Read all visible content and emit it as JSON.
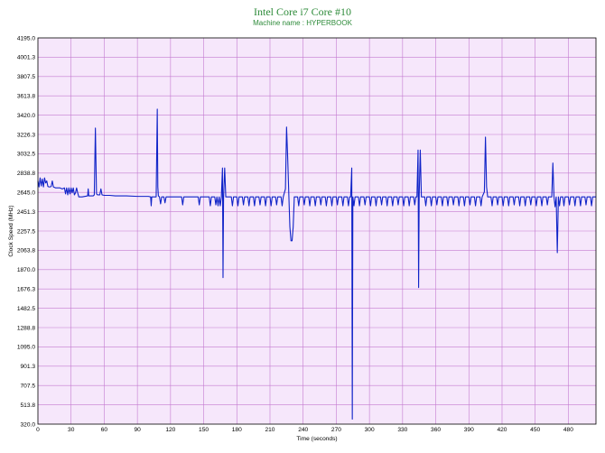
{
  "chart_data": {
    "type": "line",
    "title": "Intel Core i7 Core #10",
    "subtitle": "Machine name : HYPERBOOK",
    "xlabel": "Time (seconds)",
    "ylabel": "Clock Speed (MHz)",
    "xlim": [
      0,
      505
    ],
    "ylim": [
      320.0,
      4195.0
    ],
    "x_ticks": [
      "0",
      "30",
      "60",
      "90",
      "120",
      "150",
      "180",
      "210",
      "240",
      "270",
      "300",
      "330",
      "360",
      "390",
      "420",
      "450",
      "480"
    ],
    "y_ticks": [
      "4195.0",
      "4001.3",
      "3807.5",
      "3613.8",
      "3420.0",
      "3226.3",
      "3032.5",
      "2838.8",
      "2645.0",
      "2451.3",
      "2257.5",
      "2063.8",
      "1870.0",
      "1676.3",
      "1482.5",
      "1288.8",
      "1095.0",
      "901.3",
      "707.5",
      "513.8",
      "320.0"
    ],
    "grid": true,
    "colors": {
      "plot_background": "#f6e7fb",
      "grid": "#c47bd0",
      "series": "#0f23c8",
      "title": "#2e8b3a"
    },
    "series": [
      {
        "baseline": 2600,
        "points": [
          [
            0,
            2760
          ],
          [
            1,
            2700
          ],
          [
            2,
            2790
          ],
          [
            3,
            2710
          ],
          [
            4,
            2780
          ],
          [
            5,
            2700
          ],
          [
            6,
            2790
          ],
          [
            7,
            2740
          ],
          [
            8,
            2760
          ],
          [
            9,
            2705
          ],
          [
            10,
            2700
          ],
          [
            11,
            2700
          ],
          [
            12,
            2705
          ],
          [
            13,
            2760
          ],
          [
            14,
            2700
          ],
          [
            16,
            2690
          ],
          [
            18,
            2690
          ],
          [
            20,
            2690
          ],
          [
            22,
            2680
          ],
          [
            24,
            2690
          ],
          [
            25,
            2630
          ],
          [
            26,
            2690
          ],
          [
            27,
            2620
          ],
          [
            28,
            2690
          ],
          [
            29,
            2630
          ],
          [
            30,
            2690
          ],
          [
            31,
            2640
          ],
          [
            32,
            2690
          ],
          [
            33,
            2620
          ],
          [
            34,
            2640
          ],
          [
            35,
            2690
          ],
          [
            36,
            2640
          ],
          [
            37,
            2600
          ],
          [
            38,
            2600
          ],
          [
            40,
            2600
          ],
          [
            45,
            2610
          ],
          [
            45.5,
            2680
          ],
          [
            46,
            2610
          ],
          [
            50,
            2610
          ],
          [
            51,
            2620
          ],
          [
            52,
            3290
          ],
          [
            53,
            2630
          ],
          [
            54,
            2620
          ],
          [
            56,
            2620
          ],
          [
            57,
            2680
          ],
          [
            58,
            2620
          ],
          [
            60,
            2615
          ],
          [
            65,
            2615
          ],
          [
            70,
            2610
          ],
          [
            80,
            2610
          ],
          [
            90,
            2605
          ],
          [
            100,
            2605
          ],
          [
            102,
            2600
          ],
          [
            102.5,
            2510
          ],
          [
            103,
            2600
          ],
          [
            107,
            2600
          ],
          [
            108,
            3480
          ],
          [
            108.5,
            2700
          ],
          [
            109,
            2610
          ],
          [
            110,
            2600
          ],
          [
            111,
            2530
          ],
          [
            112,
            2600
          ],
          [
            114,
            2600
          ],
          [
            115,
            2540
          ],
          [
            116,
            2600
          ],
          [
            120,
            2600
          ],
          [
            125,
            2600
          ],
          [
            130,
            2600
          ],
          [
            131,
            2520
          ],
          [
            132,
            2600
          ],
          [
            140,
            2600
          ],
          [
            145,
            2600
          ],
          [
            146,
            2520
          ],
          [
            147,
            2600
          ],
          [
            150,
            2600
          ],
          [
            155,
            2600
          ],
          [
            156,
            2510
          ],
          [
            157,
            2600
          ],
          [
            160,
            2600
          ],
          [
            161,
            2520
          ],
          [
            162,
            2600
          ],
          [
            163,
            2510
          ],
          [
            164,
            2600
          ],
          [
            165,
            2510
          ],
          [
            166,
            2600
          ],
          [
            167,
            2890
          ],
          [
            167.5,
            1790
          ],
          [
            168,
            2600
          ],
          [
            169,
            2890
          ],
          [
            170,
            2600
          ],
          [
            175,
            2600
          ],
          [
            176,
            2510
          ],
          [
            177,
            2600
          ],
          [
            180,
            2600
          ],
          [
            181,
            2510
          ],
          [
            182,
            2600
          ],
          [
            185,
            2600
          ],
          [
            186,
            2520
          ],
          [
            187,
            2600
          ],
          [
            190,
            2600
          ],
          [
            191,
            2510
          ],
          [
            192,
            2600
          ],
          [
            195,
            2600
          ],
          [
            196,
            2510
          ],
          [
            197,
            2600
          ],
          [
            200,
            2600
          ],
          [
            201,
            2520
          ],
          [
            202,
            2600
          ],
          [
            205,
            2600
          ],
          [
            206,
            2510
          ],
          [
            207,
            2600
          ],
          [
            210,
            2600
          ],
          [
            211,
            2510
          ],
          [
            212,
            2600
          ],
          [
            215,
            2600
          ],
          [
            216,
            2520
          ],
          [
            217,
            2600
          ],
          [
            220,
            2600
          ],
          [
            221,
            2510
          ],
          [
            222,
            2600
          ],
          [
            224,
            2680
          ],
          [
            225,
            3300
          ],
          [
            226,
            3000
          ],
          [
            227,
            2640
          ],
          [
            228,
            2300
          ],
          [
            229,
            2160
          ],
          [
            230,
            2160
          ],
          [
            231,
            2300
          ],
          [
            232,
            2600
          ],
          [
            235,
            2600
          ],
          [
            236,
            2510
          ],
          [
            237,
            2600
          ],
          [
            240,
            2600
          ],
          [
            241,
            2520
          ],
          [
            242,
            2600
          ],
          [
            245,
            2600
          ],
          [
            246,
            2510
          ],
          [
            247,
            2600
          ],
          [
            250,
            2600
          ],
          [
            251,
            2510
          ],
          [
            252,
            2600
          ],
          [
            255,
            2600
          ],
          [
            256,
            2520
          ],
          [
            257,
            2600
          ],
          [
            260,
            2600
          ],
          [
            261,
            2510
          ],
          [
            262,
            2600
          ],
          [
            265,
            2600
          ],
          [
            266,
            2510
          ],
          [
            267,
            2600
          ],
          [
            270,
            2600
          ],
          [
            271,
            2520
          ],
          [
            272,
            2600
          ],
          [
            275,
            2600
          ],
          [
            276,
            2510
          ],
          [
            277,
            2600
          ],
          [
            280,
            2600
          ],
          [
            281,
            2510
          ],
          [
            282,
            2600
          ],
          [
            283,
            2600
          ],
          [
            284,
            2890
          ],
          [
            284.5,
            370
          ],
          [
            285,
            2600
          ],
          [
            286,
            2510
          ],
          [
            287,
            2600
          ],
          [
            290,
            2600
          ],
          [
            291,
            2510
          ],
          [
            292,
            2600
          ],
          [
            295,
            2600
          ],
          [
            296,
            2520
          ],
          [
            297,
            2600
          ],
          [
            300,
            2600
          ],
          [
            301,
            2510
          ],
          [
            302,
            2600
          ],
          [
            305,
            2600
          ],
          [
            306,
            2510
          ],
          [
            307,
            2600
          ],
          [
            310,
            2600
          ],
          [
            311,
            2520
          ],
          [
            312,
            2600
          ],
          [
            315,
            2600
          ],
          [
            316,
            2510
          ],
          [
            317,
            2600
          ],
          [
            320,
            2600
          ],
          [
            321,
            2510
          ],
          [
            322,
            2600
          ],
          [
            325,
            2600
          ],
          [
            326,
            2520
          ],
          [
            327,
            2600
          ],
          [
            330,
            2600
          ],
          [
            331,
            2510
          ],
          [
            332,
            2600
          ],
          [
            335,
            2600
          ],
          [
            336,
            2510
          ],
          [
            337,
            2600
          ],
          [
            340,
            2600
          ],
          [
            341,
            2520
          ],
          [
            342,
            2600
          ],
          [
            343,
            2600
          ],
          [
            344,
            3070
          ],
          [
            344.5,
            1690
          ],
          [
            345,
            2600
          ],
          [
            346,
            3070
          ],
          [
            347,
            2600
          ],
          [
            350,
            2600
          ],
          [
            351,
            2510
          ],
          [
            352,
            2600
          ],
          [
            355,
            2600
          ],
          [
            356,
            2510
          ],
          [
            357,
            2600
          ],
          [
            360,
            2600
          ],
          [
            361,
            2520
          ],
          [
            362,
            2600
          ],
          [
            365,
            2600
          ],
          [
            366,
            2510
          ],
          [
            367,
            2600
          ],
          [
            370,
            2600
          ],
          [
            371,
            2510
          ],
          [
            372,
            2600
          ],
          [
            375,
            2600
          ],
          [
            376,
            2520
          ],
          [
            377,
            2600
          ],
          [
            380,
            2600
          ],
          [
            381,
            2510
          ],
          [
            382,
            2600
          ],
          [
            385,
            2600
          ],
          [
            386,
            2510
          ],
          [
            387,
            2600
          ],
          [
            390,
            2600
          ],
          [
            391,
            2520
          ],
          [
            392,
            2600
          ],
          [
            395,
            2600
          ],
          [
            396,
            2510
          ],
          [
            397,
            2600
          ],
          [
            400,
            2600
          ],
          [
            401,
            2510
          ],
          [
            402,
            2600
          ],
          [
            404,
            2650
          ],
          [
            405,
            3200
          ],
          [
            406,
            2700
          ],
          [
            407,
            2600
          ],
          [
            410,
            2600
          ],
          [
            411,
            2510
          ],
          [
            412,
            2600
          ],
          [
            415,
            2600
          ],
          [
            416,
            2520
          ],
          [
            417,
            2600
          ],
          [
            420,
            2600
          ],
          [
            421,
            2510
          ],
          [
            422,
            2600
          ],
          [
            425,
            2600
          ],
          [
            426,
            2510
          ],
          [
            427,
            2600
          ],
          [
            430,
            2600
          ],
          [
            431,
            2520
          ],
          [
            432,
            2600
          ],
          [
            435,
            2600
          ],
          [
            436,
            2510
          ],
          [
            437,
            2600
          ],
          [
            440,
            2600
          ],
          [
            441,
            2510
          ],
          [
            442,
            2600
          ],
          [
            445,
            2600
          ],
          [
            446,
            2520
          ],
          [
            447,
            2600
          ],
          [
            450,
            2600
          ],
          [
            451,
            2510
          ],
          [
            452,
            2600
          ],
          [
            455,
            2600
          ],
          [
            456,
            2510
          ],
          [
            457,
            2600
          ],
          [
            460,
            2600
          ],
          [
            461,
            2520
          ],
          [
            462,
            2600
          ],
          [
            465,
            2600
          ],
          [
            466,
            2940
          ],
          [
            467,
            2600
          ],
          [
            468,
            2500
          ],
          [
            469,
            2600
          ],
          [
            470,
            2040
          ],
          [
            471,
            2600
          ],
          [
            472,
            2510
          ],
          [
            473,
            2600
          ],
          [
            475,
            2600
          ],
          [
            476,
            2510
          ],
          [
            477,
            2600
          ],
          [
            480,
            2600
          ],
          [
            481,
            2520
          ],
          [
            482,
            2600
          ],
          [
            485,
            2600
          ],
          [
            486,
            2510
          ],
          [
            487,
            2600
          ],
          [
            490,
            2600
          ],
          [
            491,
            2510
          ],
          [
            492,
            2600
          ],
          [
            495,
            2600
          ],
          [
            496,
            2520
          ],
          [
            497,
            2600
          ],
          [
            500,
            2600
          ],
          [
            501,
            2510
          ],
          [
            502,
            2600
          ],
          [
            505,
            2600
          ]
        ]
      }
    ]
  }
}
